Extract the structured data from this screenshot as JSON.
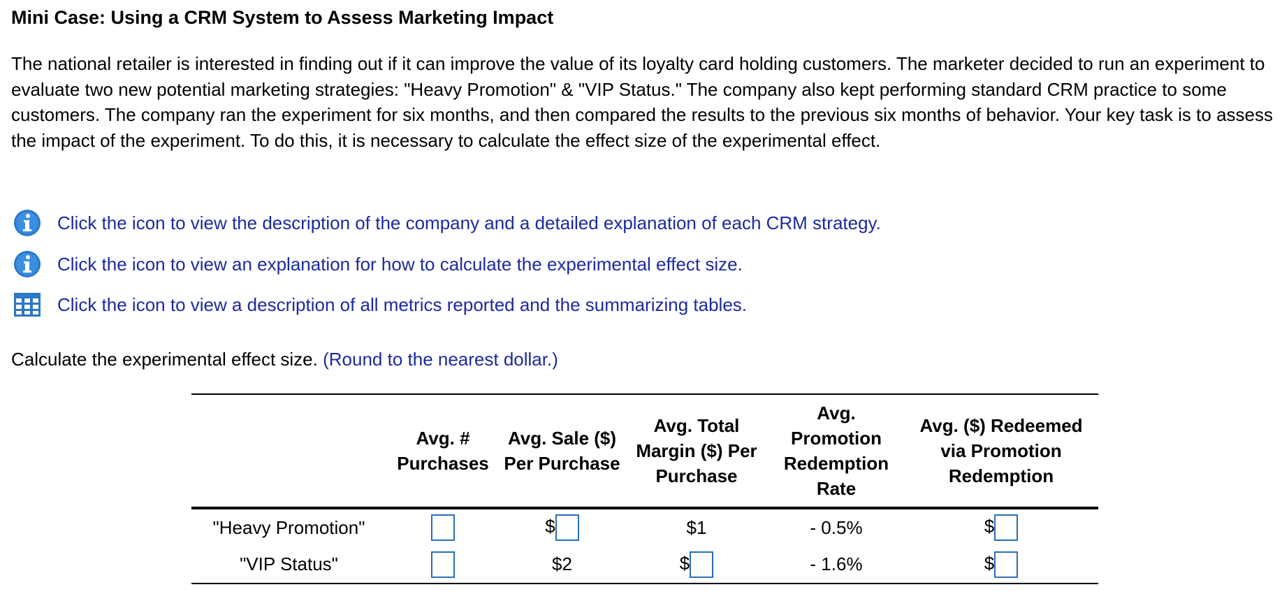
{
  "title": "Mini Case: Using a CRM System to Assess Marketing Impact",
  "paragraph": "The national retailer is interested in finding out if it can improve the value of its loyalty card holding customers. The marketer decided to run an experiment to evaluate two new potential marketing strategies: \"Heavy Promotion\" & \"VIP Status.\" The company also kept performing standard CRM practice to some customers. The company ran the experiment for six months, and then compared the results to the previous six months of behavior. Your key task is to assess the impact of the experiment. To do this, it is necessary to calculate the effect size of the experimental effect.",
  "links": [
    {
      "icon": "info",
      "text": "Click the icon to view the description of the company and a detailed explanation of each CRM strategy."
    },
    {
      "icon": "info",
      "text": "Click the icon to view an explanation for how to calculate the experimental effect size."
    },
    {
      "icon": "table",
      "text": "Click the icon to view a description of all metrics reported and the summarizing tables."
    }
  ],
  "question": {
    "text": "Calculate the experimental effect size.",
    "hint": "(Round to the nearest dollar.)"
  },
  "table": {
    "headers": [
      "Avg. # Purchases",
      "Avg. Sale ($) Per Purchase",
      "Avg. Total Margin ($) Per Purchase",
      "Avg. Promotion Redemption Rate",
      "Avg. ($) Redeemed via Promotion Redemption"
    ],
    "rows": [
      {
        "label": "\"Heavy Promotion\"",
        "cells": [
          {
            "input": true
          },
          {
            "prefix": "$",
            "input": true
          },
          "$1",
          "- 0.5%",
          {
            "prefix": "$",
            "input": true
          }
        ]
      },
      {
        "label": "\"VIP Status\"",
        "cells": [
          {
            "input": true
          },
          "$2",
          {
            "prefix": "$",
            "input": true
          },
          "- 1.6%",
          {
            "prefix": "$",
            "input": true
          }
        ]
      }
    ]
  }
}
